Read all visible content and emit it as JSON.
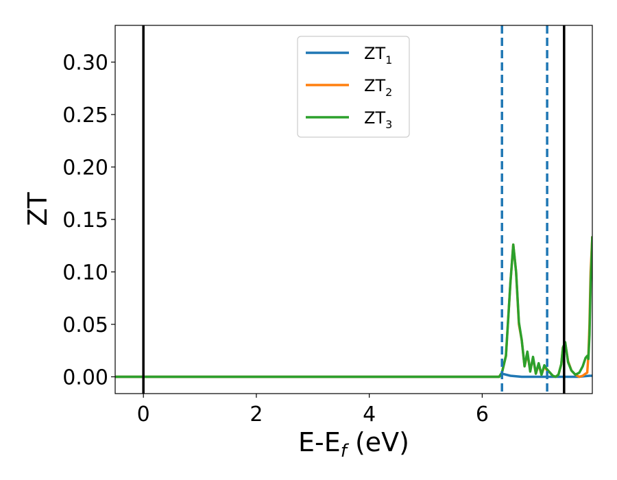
{
  "chart_data": {
    "type": "line",
    "xlabel": "E-E",
    "xlabel_sub": "f",
    "xlabel_unit": " (eV)",
    "ylabel": "ZT",
    "xlim": [
      -0.5,
      7.95
    ],
    "ylim": [
      -0.016,
      0.335
    ],
    "xticks": [
      0,
      2,
      4,
      6
    ],
    "xtick_labels": [
      "0",
      "2",
      "4",
      "6"
    ],
    "yticks": [
      0.0,
      0.05,
      0.1,
      0.15,
      0.2,
      0.25,
      0.3
    ],
    "ytick_labels": [
      "0.00",
      "0.05",
      "0.10",
      "0.15",
      "0.20",
      "0.25",
      "0.30"
    ],
    "grid": false,
    "legend": "upper-center",
    "vlines_solid": [
      0.0,
      7.45
    ],
    "vlines_dashed": [
      6.35,
      7.15
    ],
    "vline_solid_color": "#000000",
    "vline_dashed_color": "#1f77b4",
    "series": [
      {
        "name": "ZT",
        "sub": "1",
        "color": "#1f77b4",
        "x": [
          -0.5,
          6.3,
          6.35,
          6.5,
          6.7,
          6.9,
          7.1,
          7.3,
          7.5,
          7.7,
          7.9,
          7.95
        ],
        "y": [
          0.0,
          0.0,
          0.003,
          0.001,
          0.0,
          0.0,
          0.0,
          0.0,
          0.0,
          0.0,
          0.001,
          0.001
        ]
      },
      {
        "name": "ZT",
        "sub": "2",
        "color": "#ff7f0e",
        "x": [
          -0.5,
          6.3,
          6.35,
          6.42,
          6.5,
          6.55,
          6.6,
          6.65,
          6.7,
          6.75,
          6.8,
          6.85,
          6.9,
          6.95,
          7.0,
          7.05,
          7.1,
          7.15,
          7.2,
          7.25,
          7.3,
          7.35,
          7.4,
          7.43,
          7.47,
          7.52,
          7.58,
          7.65,
          7.72,
          7.78,
          7.83,
          7.86,
          7.88,
          7.9,
          7.92,
          7.95
        ],
        "y": [
          0.0,
          0.0,
          0.004,
          0.02,
          0.09,
          0.126,
          0.1,
          0.05,
          0.035,
          0.01,
          0.022,
          0.006,
          0.018,
          0.003,
          0.012,
          0.002,
          0.01,
          0.006,
          0.004,
          0.001,
          0.0,
          0.002,
          0.012,
          0.028,
          0.032,
          0.015,
          0.006,
          0.002,
          0.0,
          0.001,
          0.003,
          0.004,
          0.02,
          0.05,
          0.1,
          0.134
        ]
      },
      {
        "name": "ZT",
        "sub": "3",
        "color": "#2ca02c",
        "x": [
          -0.5,
          6.3,
          6.35,
          6.42,
          6.5,
          6.55,
          6.6,
          6.65,
          6.7,
          6.75,
          6.8,
          6.85,
          6.9,
          6.95,
          7.0,
          7.05,
          7.1,
          7.15,
          7.2,
          7.25,
          7.3,
          7.35,
          7.4,
          7.43,
          7.47,
          7.52,
          7.58,
          7.65,
          7.72,
          7.78,
          7.83,
          7.86,
          7.88,
          7.9,
          7.92,
          7.95
        ],
        "y": [
          0.0,
          0.0,
          0.004,
          0.02,
          0.09,
          0.126,
          0.1,
          0.052,
          0.035,
          0.01,
          0.024,
          0.005,
          0.019,
          0.003,
          0.013,
          0.002,
          0.011,
          0.007,
          0.004,
          0.001,
          0.0,
          0.002,
          0.012,
          0.028,
          0.033,
          0.014,
          0.006,
          0.002,
          0.004,
          0.01,
          0.018,
          0.02,
          0.017,
          0.04,
          0.09,
          0.134
        ]
      }
    ]
  }
}
